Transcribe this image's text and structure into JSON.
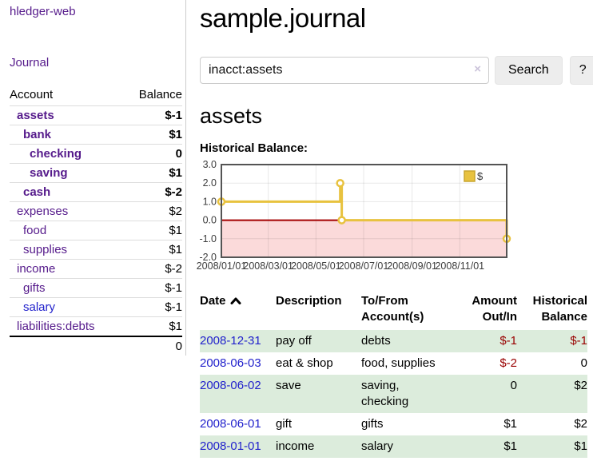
{
  "sidebar": {
    "brand": "hledger-web",
    "journal_label": "Journal",
    "table": {
      "account_header": "Account",
      "balance_header": "Balance"
    },
    "accounts": [
      {
        "name": "assets",
        "level": 0,
        "balance": "$-1",
        "bold": true,
        "balance_color": "negative"
      },
      {
        "name": "bank",
        "level": 1,
        "balance": "$1",
        "bold": true,
        "balance_color": "normal"
      },
      {
        "name": "checking",
        "level": 2,
        "balance": "0",
        "bold": true,
        "balance_color": "normal"
      },
      {
        "name": "saving",
        "level": 2,
        "balance": "$1",
        "bold": true,
        "balance_color": "normal"
      },
      {
        "name": "cash",
        "level": 1,
        "balance": "$-2",
        "bold": true,
        "balance_color": "negative"
      },
      {
        "name": "expenses",
        "level": 0,
        "balance": "$2",
        "bold": false,
        "balance_color": "normal"
      },
      {
        "name": "food",
        "level": 1,
        "balance": "$1",
        "bold": false,
        "balance_color": "normal"
      },
      {
        "name": "supplies",
        "level": 1,
        "balance": "$1",
        "bold": false,
        "balance_color": "normal"
      },
      {
        "name": "income",
        "level": 0,
        "balance": "$-2",
        "bold": false,
        "balance_color": "negative-muted"
      },
      {
        "name": "gifts",
        "level": 1,
        "balance": "$-1",
        "bold": false,
        "balance_color": "negative-muted"
      },
      {
        "name": "salary",
        "level": 1,
        "balance": "$-1",
        "bold": false,
        "balance_color": "negative-muted",
        "link_color": "blue"
      },
      {
        "name": "liabilities:debts",
        "level": 0,
        "balance": "$1",
        "bold": false,
        "balance_color": "normal"
      }
    ],
    "total": "0"
  },
  "header": {
    "title": "sample.journal"
  },
  "search": {
    "value": "inacct:assets",
    "clear_icon": "×",
    "button_label": "Search",
    "help_label": "?"
  },
  "account_page": {
    "heading": "assets",
    "chart_title": "Historical Balance:"
  },
  "chart_data": {
    "type": "line",
    "style": "step",
    "series": [
      {
        "name": "$",
        "points": [
          [
            "2008-01-01",
            1
          ],
          [
            "2008-06-01",
            2
          ],
          [
            "2008-06-03",
            0
          ],
          [
            "2008-12-31",
            -1
          ]
        ]
      }
    ],
    "x_range": [
      "2008-01-01",
      "2008-12-31"
    ],
    "x_ticks": [
      "2008/01/01",
      "2008/03/01",
      "2008/05/01",
      "2008/07/01",
      "2008/09/01",
      "2008/11/01"
    ],
    "y_ticks": [
      3.0,
      2.0,
      1.0,
      0.0,
      -1.0,
      -2.0
    ],
    "ylim": [
      -2,
      3
    ],
    "grid": true,
    "legend": {
      "label": "$",
      "position": "top-right"
    },
    "line_color": "#e8c23f",
    "negative_region_color": "#fbdada",
    "zero_line_color": "#a40000"
  },
  "register": {
    "headers": {
      "date": "Date",
      "description": "Description",
      "accounts": "To/From Account(s)",
      "amount": "Amount Out/In",
      "balance": "Historical Balance"
    },
    "sort": {
      "column": "date",
      "direction": "ascending"
    },
    "rows": [
      {
        "date": "2008-12-31",
        "description": "pay off",
        "accounts": "debts",
        "amount": "$-1",
        "amount_negative": true,
        "balance": "$-1",
        "balance_negative": true,
        "shaded": true
      },
      {
        "date": "2008-06-03",
        "description": "eat & shop",
        "accounts": "food, supplies",
        "amount": "$-2",
        "amount_negative": true,
        "balance": "0",
        "balance_negative": false,
        "shaded": false
      },
      {
        "date": "2008-06-02",
        "description": "save",
        "accounts": "saving,\nchecking",
        "amount": "0",
        "amount_negative": false,
        "balance": "$2",
        "balance_negative": false,
        "shaded": true
      },
      {
        "date": "2008-06-01",
        "description": "gift",
        "accounts": "gifts",
        "amount": "$1",
        "amount_negative": false,
        "balance": "$2",
        "balance_negative": false,
        "shaded": false
      },
      {
        "date": "2008-01-01",
        "description": "income",
        "accounts": "salary",
        "amount": "$1",
        "amount_negative": false,
        "balance": "$1",
        "balance_negative": false,
        "shaded": true
      }
    ]
  },
  "colors": {
    "link_visited": "#551a8b",
    "link": "#2222cc",
    "negative": "#990000",
    "negative_muted": "#c06666",
    "row_shaded": "#dcecdc"
  }
}
